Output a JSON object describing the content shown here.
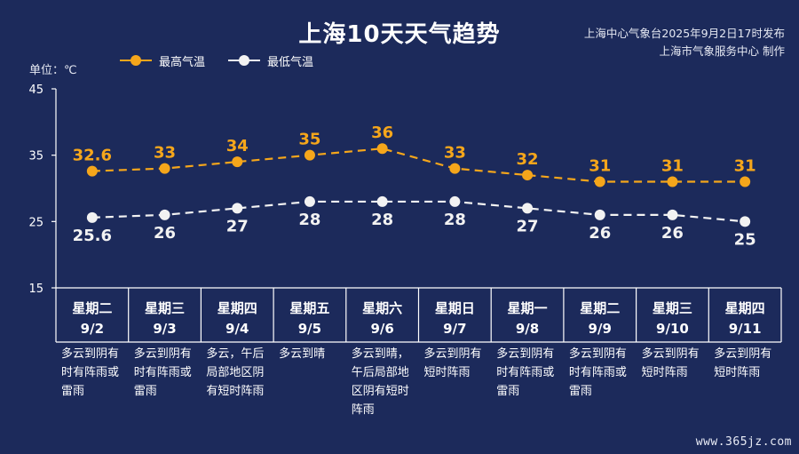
{
  "title": "上海10天天气趋势",
  "publisher": {
    "line1": "上海中心气象台2025年9月2日17时发布",
    "line2": "上海市气象服务中心 制作"
  },
  "unit_label": "单位：℃",
  "watermark": "www.365jz.com",
  "colors": {
    "background": "#1c2a5b",
    "high": "#f5a61b",
    "low": "#f2f2f2",
    "axis": "#ffffff"
  },
  "chart_data": {
    "type": "line",
    "title": "上海10天天气趋势",
    "ylabel": "单位：℃",
    "ylim": [
      15,
      45
    ],
    "yticks": [
      15,
      25,
      35,
      45
    ],
    "grid": false,
    "legend_position": "top-left",
    "categories": [
      "9/2",
      "9/3",
      "9/4",
      "9/5",
      "9/6",
      "9/7",
      "9/8",
      "9/9",
      "9/10",
      "9/11"
    ],
    "series": [
      {
        "name": "最高气温",
        "color": "#f5a61b",
        "values": [
          32.6,
          33,
          34,
          35,
          36,
          33,
          32,
          31,
          31,
          31
        ],
        "labels": [
          "32.6",
          "33",
          "34",
          "35",
          "36",
          "33",
          "32",
          "31",
          "31",
          "31"
        ]
      },
      {
        "name": "最低气温",
        "color": "#f2f2f2",
        "values": [
          25.6,
          26,
          27,
          28,
          28,
          28,
          27,
          26,
          26,
          25
        ],
        "labels": [
          "25.6",
          "26",
          "27",
          "28",
          "28",
          "28",
          "27",
          "26",
          "26",
          "25"
        ]
      }
    ]
  },
  "days": [
    {
      "weekday": "星期二",
      "date": "9/2",
      "desc": "多云到阴有时有阵雨或雷雨"
    },
    {
      "weekday": "星期三",
      "date": "9/3",
      "desc": "多云到阴有时有阵雨或雷雨"
    },
    {
      "weekday": "星期四",
      "date": "9/4",
      "desc": "多云，午后局部地区阴有短时阵雨"
    },
    {
      "weekday": "星期五",
      "date": "9/5",
      "desc": "多云到晴"
    },
    {
      "weekday": "星期六",
      "date": "9/6",
      "desc": "多云到晴，午后局部地区阴有短时阵雨"
    },
    {
      "weekday": "星期日",
      "date": "9/7",
      "desc": "多云到阴有短时阵雨"
    },
    {
      "weekday": "星期一",
      "date": "9/8",
      "desc": "多云到阴有时有阵雨或雷雨"
    },
    {
      "weekday": "星期二",
      "date": "9/9",
      "desc": "多云到阴有时有阵雨或雷雨"
    },
    {
      "weekday": "星期三",
      "date": "9/10",
      "desc": "多云到阴有短时阵雨"
    },
    {
      "weekday": "星期四",
      "date": "9/11",
      "desc": "多云到阴有短时阵雨"
    }
  ]
}
